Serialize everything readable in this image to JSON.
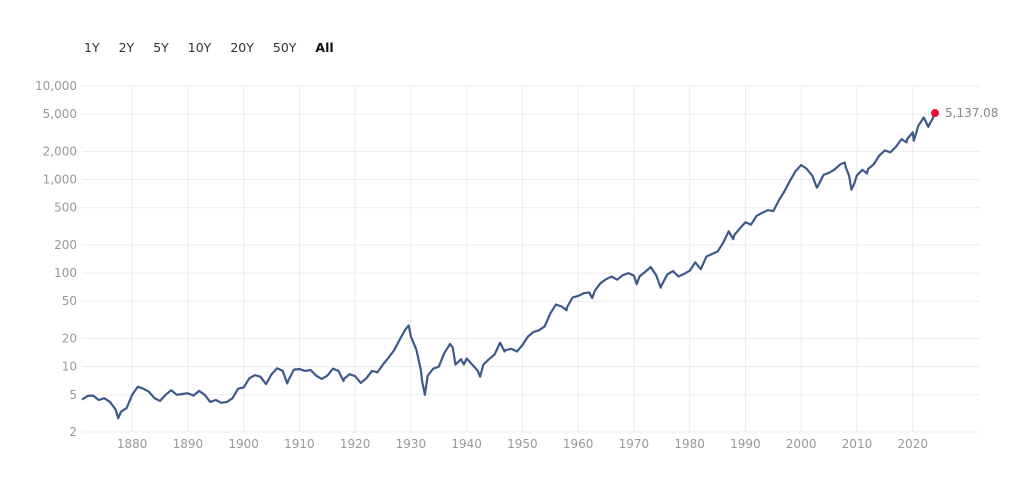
{
  "range_selector": {
    "buttons": [
      {
        "label": "1Y",
        "active": false
      },
      {
        "label": "2Y",
        "active": false
      },
      {
        "label": "5Y",
        "active": false
      },
      {
        "label": "10Y",
        "active": false
      },
      {
        "label": "20Y",
        "active": false
      },
      {
        "label": "50Y",
        "active": false
      },
      {
        "label": "All",
        "active": true
      }
    ]
  },
  "colors": {
    "line": "#3d5a8a",
    "marker": "#e0103a",
    "grid": "#ececec"
  },
  "chart_data": {
    "type": "line",
    "y_scale": "log",
    "ylim": [
      2,
      10000
    ],
    "xlim": [
      1871,
      2024
    ],
    "y_ticks": [
      {
        "value": 10000,
        "label": "10,000"
      },
      {
        "value": 5000,
        "label": "5,000"
      },
      {
        "value": 2000,
        "label": "2,000"
      },
      {
        "value": 1000,
        "label": "1,000"
      },
      {
        "value": 500,
        "label": "500"
      },
      {
        "value": 200,
        "label": "200"
      },
      {
        "value": 100,
        "label": "100"
      },
      {
        "value": 50,
        "label": "50"
      },
      {
        "value": 20,
        "label": "20"
      },
      {
        "value": 10,
        "label": "10"
      },
      {
        "value": 5,
        "label": "5"
      },
      {
        "value": 2,
        "label": "2"
      }
    ],
    "x_ticks": [
      {
        "value": 1880,
        "label": "1880"
      },
      {
        "value": 1890,
        "label": "1890"
      },
      {
        "value": 1900,
        "label": "1900"
      },
      {
        "value": 1910,
        "label": "1910"
      },
      {
        "value": 1920,
        "label": "1920"
      },
      {
        "value": 1930,
        "label": "1930"
      },
      {
        "value": 1940,
        "label": "1940"
      },
      {
        "value": 1950,
        "label": "1950"
      },
      {
        "value": 1960,
        "label": "1960"
      },
      {
        "value": 1970,
        "label": "1970"
      },
      {
        "value": 1980,
        "label": "1980"
      },
      {
        "value": 1990,
        "label": "1990"
      },
      {
        "value": 2000,
        "label": "2000"
      },
      {
        "value": 2010,
        "label": "2010"
      },
      {
        "value": 2020,
        "label": "2020"
      }
    ],
    "last_value_label": "5,137.08",
    "series": [
      {
        "points": [
          [
            1871.0,
            4.44
          ],
          [
            1872.0,
            4.86
          ],
          [
            1873.0,
            4.9
          ],
          [
            1874.0,
            4.4
          ],
          [
            1875.0,
            4.6
          ],
          [
            1876.0,
            4.2
          ],
          [
            1877.0,
            3.5
          ],
          [
            1877.5,
            2.8
          ],
          [
            1878.0,
            3.3
          ],
          [
            1879.0,
            3.6
          ],
          [
            1880.0,
            5.0
          ],
          [
            1881.0,
            6.1
          ],
          [
            1882.0,
            5.8
          ],
          [
            1883.0,
            5.4
          ],
          [
            1884.0,
            4.6
          ],
          [
            1885.0,
            4.3
          ],
          [
            1886.0,
            5.0
          ],
          [
            1887.0,
            5.6
          ],
          [
            1888.0,
            5.0
          ],
          [
            1889.0,
            5.1
          ],
          [
            1890.0,
            5.2
          ],
          [
            1891.0,
            4.9
          ],
          [
            1892.0,
            5.5
          ],
          [
            1893.0,
            5.0
          ],
          [
            1894.0,
            4.2
          ],
          [
            1895.0,
            4.4
          ],
          [
            1896.0,
            4.1
          ],
          [
            1897.0,
            4.2
          ],
          [
            1898.0,
            4.6
          ],
          [
            1899.0,
            5.8
          ],
          [
            1900.0,
            6.0
          ],
          [
            1901.0,
            7.5
          ],
          [
            1902.0,
            8.1
          ],
          [
            1903.0,
            7.8
          ],
          [
            1904.0,
            6.5
          ],
          [
            1905.0,
            8.3
          ],
          [
            1906.0,
            9.6
          ],
          [
            1907.0,
            9.0
          ],
          [
            1907.8,
            6.6
          ],
          [
            1908.0,
            7.1
          ],
          [
            1909.0,
            9.3
          ],
          [
            1910.0,
            9.4
          ],
          [
            1911.0,
            9.0
          ],
          [
            1912.0,
            9.2
          ],
          [
            1913.0,
            8.0
          ],
          [
            1914.0,
            7.4
          ],
          [
            1915.0,
            8.0
          ],
          [
            1916.0,
            9.5
          ],
          [
            1917.0,
            9.0
          ],
          [
            1917.9,
            7.0
          ],
          [
            1918.0,
            7.4
          ],
          [
            1919.0,
            8.3
          ],
          [
            1920.0,
            7.9
          ],
          [
            1921.0,
            6.7
          ],
          [
            1922.0,
            7.5
          ],
          [
            1923.0,
            9.0
          ],
          [
            1924.0,
            8.7
          ],
          [
            1925.0,
            10.6
          ],
          [
            1926.0,
            12.5
          ],
          [
            1927.0,
            15.0
          ],
          [
            1928.0,
            19.5
          ],
          [
            1929.0,
            25.0
          ],
          [
            1929.6,
            27.5
          ],
          [
            1930.0,
            21.0
          ],
          [
            1931.0,
            15.0
          ],
          [
            1931.8,
            9.0
          ],
          [
            1932.0,
            7.0
          ],
          [
            1932.5,
            5.0
          ],
          [
            1933.0,
            8.0
          ],
          [
            1934.0,
            9.5
          ],
          [
            1935.0,
            10.0
          ],
          [
            1936.0,
            14.0
          ],
          [
            1937.0,
            17.5
          ],
          [
            1937.5,
            16.0
          ],
          [
            1938.0,
            10.5
          ],
          [
            1939.0,
            12.0
          ],
          [
            1939.5,
            10.5
          ],
          [
            1940.0,
            12.2
          ],
          [
            1941.0,
            10.5
          ],
          [
            1942.0,
            9.0
          ],
          [
            1942.4,
            7.8
          ],
          [
            1943.0,
            10.5
          ],
          [
            1944.0,
            12.0
          ],
          [
            1945.0,
            13.5
          ],
          [
            1946.0,
            18.0
          ],
          [
            1946.8,
            14.5
          ],
          [
            1947.0,
            15.0
          ],
          [
            1948.0,
            15.5
          ],
          [
            1949.0,
            14.5
          ],
          [
            1950.0,
            17.0
          ],
          [
            1951.0,
            21.0
          ],
          [
            1952.0,
            23.5
          ],
          [
            1953.0,
            24.5
          ],
          [
            1954.0,
            27.0
          ],
          [
            1955.0,
            37.0
          ],
          [
            1956.0,
            46.0
          ],
          [
            1957.0,
            44.0
          ],
          [
            1957.9,
            40.0
          ],
          [
            1958.0,
            43.0
          ],
          [
            1959.0,
            55.0
          ],
          [
            1960.0,
            57.0
          ],
          [
            1961.0,
            61.0
          ],
          [
            1962.0,
            62.0
          ],
          [
            1962.5,
            54.0
          ],
          [
            1963.0,
            65.0
          ],
          [
            1964.0,
            78.0
          ],
          [
            1965.0,
            86.0
          ],
          [
            1966.0,
            92.0
          ],
          [
            1967.0,
            85.0
          ],
          [
            1968.0,
            95.0
          ],
          [
            1969.0,
            100.0
          ],
          [
            1970.0,
            94.0
          ],
          [
            1970.5,
            76.0
          ],
          [
            1971.0,
            92.0
          ],
          [
            1972.0,
            103.0
          ],
          [
            1973.0,
            116.0
          ],
          [
            1974.0,
            95.0
          ],
          [
            1974.8,
            70.0
          ],
          [
            1975.0,
            75.0
          ],
          [
            1976.0,
            97.0
          ],
          [
            1977.0,
            105.0
          ],
          [
            1978.0,
            92.0
          ],
          [
            1979.0,
            98.0
          ],
          [
            1980.0,
            106.0
          ],
          [
            1981.0,
            130.0
          ],
          [
            1982.0,
            110.0
          ],
          [
            1983.0,
            150.0
          ],
          [
            1984.0,
            160.0
          ],
          [
            1985.0,
            170.0
          ],
          [
            1986.0,
            210.0
          ],
          [
            1987.0,
            280.0
          ],
          [
            1987.8,
            230.0
          ],
          [
            1988.0,
            255.0
          ],
          [
            1989.0,
            300.0
          ],
          [
            1990.0,
            350.0
          ],
          [
            1991.0,
            330.0
          ],
          [
            1992.0,
            410.0
          ],
          [
            1993.0,
            440.0
          ],
          [
            1994.0,
            470.0
          ],
          [
            1995.0,
            460.0
          ],
          [
            1996.0,
            600.0
          ],
          [
            1997.0,
            750.0
          ],
          [
            1998.0,
            970.0
          ],
          [
            1999.0,
            1230.0
          ],
          [
            2000.0,
            1430.0
          ],
          [
            2001.0,
            1300.0
          ],
          [
            2002.0,
            1100.0
          ],
          [
            2002.8,
            820.0
          ],
          [
            2003.0,
            850.0
          ],
          [
            2004.0,
            1120.0
          ],
          [
            2005.0,
            1180.0
          ],
          [
            2006.0,
            1280.0
          ],
          [
            2007.0,
            1450.0
          ],
          [
            2007.8,
            1520.0
          ],
          [
            2008.0,
            1350.0
          ],
          [
            2008.6,
            1100.0
          ],
          [
            2009.0,
            780.0
          ],
          [
            2009.5,
            900.0
          ],
          [
            2010.0,
            1110.0
          ],
          [
            2011.0,
            1270.0
          ],
          [
            2011.8,
            1160.0
          ],
          [
            2012.0,
            1300.0
          ],
          [
            2013.0,
            1450.0
          ],
          [
            2014.0,
            1800.0
          ],
          [
            2015.0,
            2050.0
          ],
          [
            2016.0,
            1950.0
          ],
          [
            2017.0,
            2250.0
          ],
          [
            2018.0,
            2700.0
          ],
          [
            2018.9,
            2500.0
          ],
          [
            2019.0,
            2700.0
          ],
          [
            2020.0,
            3200.0
          ],
          [
            2020.2,
            2600.0
          ],
          [
            2021.0,
            3750.0
          ],
          [
            2022.0,
            4600.0
          ],
          [
            2022.8,
            3650.0
          ],
          [
            2023.0,
            3900.0
          ],
          [
            2023.5,
            4400.0
          ],
          [
            2024.0,
            5137.08
          ]
        ]
      }
    ]
  }
}
